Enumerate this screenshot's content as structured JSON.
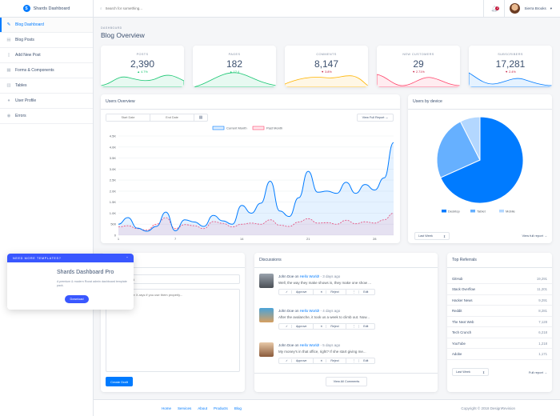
{
  "brand": {
    "name": "Shards Dashboard"
  },
  "sidebar": {
    "items": [
      {
        "label": "Blog Dashboard",
        "icon": "edit-icon",
        "active": true
      },
      {
        "label": "Blog Posts",
        "icon": "posts-icon"
      },
      {
        "label": "Add New Post",
        "icon": "note-add-icon"
      },
      {
        "label": "Forms & Components",
        "icon": "view-module-icon"
      },
      {
        "label": "Tables",
        "icon": "table-icon"
      },
      {
        "label": "User Profile",
        "icon": "person-icon"
      },
      {
        "label": "Errors",
        "icon": "error-icon"
      }
    ]
  },
  "topbar": {
    "search_placeholder": "Search for something...",
    "notifications_count": "2",
    "user_name": "Sierra Brooks"
  },
  "header": {
    "subtitle": "DASHBOARD",
    "title": "Blog Overview"
  },
  "stats": [
    {
      "label": "POSTS",
      "value": "2,390",
      "change": "4.7%",
      "direction": "up",
      "color": "#17c671"
    },
    {
      "label": "PAGES",
      "value": "182",
      "change": "12.4",
      "direction": "up",
      "color": "#17c671"
    },
    {
      "label": "COMMENTS",
      "value": "8,147",
      "change": "3.8%",
      "direction": "down",
      "color": "#ffb400"
    },
    {
      "label": "NEW CUSTOMERS",
      "value": "29",
      "change": "2.71%",
      "direction": "down",
      "color": "#ff4169"
    },
    {
      "label": "SUBSCRIBERS",
      "value": "17,281",
      "change": "2.4%",
      "direction": "down",
      "color": "#007bff"
    }
  ],
  "users_overview": {
    "title": "Users Overview",
    "start_placeholder": "Start Date",
    "end_placeholder": "End Date",
    "report_button": "View Full Report →"
  },
  "chart_data": [
    {
      "type": "line",
      "legend_position": "top",
      "x": [
        1,
        2,
        3,
        4,
        5,
        6,
        7,
        8,
        9,
        10,
        11,
        12,
        13,
        14,
        15,
        16,
        17,
        18,
        19,
        20,
        21,
        22,
        23,
        24,
        25,
        26,
        27,
        28,
        29,
        30
      ],
      "x_ticks": [
        "1",
        "7",
        "14",
        "21",
        "28"
      ],
      "ylim": [
        0,
        4500
      ],
      "y_ticks": [
        "0",
        "500",
        "1.0K",
        "1.5K",
        "2.0K",
        "2.5K",
        "3.0K",
        "3.5K",
        "4.0K",
        "4.5K"
      ],
      "series": [
        {
          "name": "Current Month",
          "color": "#007bff",
          "values": [
            500,
            800,
            320,
            180,
            400,
            1050,
            200,
            700,
            600,
            400,
            900,
            650,
            500,
            1350,
            1000,
            1450,
            2450,
            1100,
            850,
            1700,
            2900,
            1950,
            2000,
            1900,
            2400,
            1900,
            2300,
            2050,
            2600,
            4200
          ]
        },
        {
          "name": "Past Month",
          "color": "#ff4169",
          "values": [
            380,
            430,
            300,
            230,
            500,
            800,
            300,
            480,
            430,
            300,
            620,
            540,
            380,
            500,
            550,
            500,
            700,
            450,
            400,
            600,
            750,
            550,
            570,
            500,
            680,
            520,
            610,
            550,
            700,
            1000
          ]
        }
      ]
    },
    {
      "type": "pie",
      "title": "Users by device",
      "series": [
        {
          "name": "Desktop",
          "value": 68.3,
          "color": "#007bff"
        },
        {
          "name": "Tablet",
          "value": 24.2,
          "color": "#66b0ff"
        },
        {
          "name": "Mobile",
          "value": 7.5,
          "color": "#b3d7ff"
        }
      ]
    }
  ],
  "users_by_device": {
    "title": "Users by device",
    "range_select": "Last Week",
    "report_link": "View full report →"
  },
  "quick_draft": {
    "title_placeholder": "Brave New World",
    "body_placeholder": "Words can be like X-rays if you use them properly...",
    "button": "Create Draft"
  },
  "promo": {
    "header": "NEED MORE TEMPLATES?",
    "title": "Shards Dashboard Pro",
    "text": "A premium & modern Roost admin dashboard template pack.",
    "button": "Download"
  },
  "discussions": {
    "title": "Discussions",
    "items": [
      {
        "author": "John Doe",
        "post": "Hello World!",
        "time": "3 days ago",
        "text": "Well, the way they make shows is, they make one show ..."
      },
      {
        "author": "John Doe",
        "post": "Hello World!",
        "time": "4 days ago",
        "text": "After the avalanche, it took us a week to climb out. Now..."
      },
      {
        "author": "John Doe",
        "post": "Hello World!",
        "time": "5 days ago",
        "text": "My money's in that office, right? If she start giving me..."
      }
    ],
    "actions": {
      "approve": "Approve",
      "reject": "Reject",
      "edit": "Edit"
    },
    "view_all": "View All Comments",
    "on": "on"
  },
  "top_referrals": {
    "title": "Top Referrals",
    "rows": [
      {
        "name": "GitHub",
        "value": "19,291"
      },
      {
        "name": "Stack Overflow",
        "value": "11,201"
      },
      {
        "name": "Hacker News",
        "value": "9,291"
      },
      {
        "name": "Reddit",
        "value": "8,281"
      },
      {
        "name": "The Next Web",
        "value": "7,128"
      },
      {
        "name": "Tech Crunch",
        "value": "6,218"
      },
      {
        "name": "YouTube",
        "value": "1,218"
      },
      {
        "name": "Adobe",
        "value": "1,171"
      }
    ],
    "range_select": "Last Week",
    "report_link": "Full report →"
  },
  "footer": {
    "links": [
      "Home",
      "Services",
      "About",
      "Products",
      "Blog"
    ],
    "copyright": "Copyright © 2018 DesignRevision"
  }
}
